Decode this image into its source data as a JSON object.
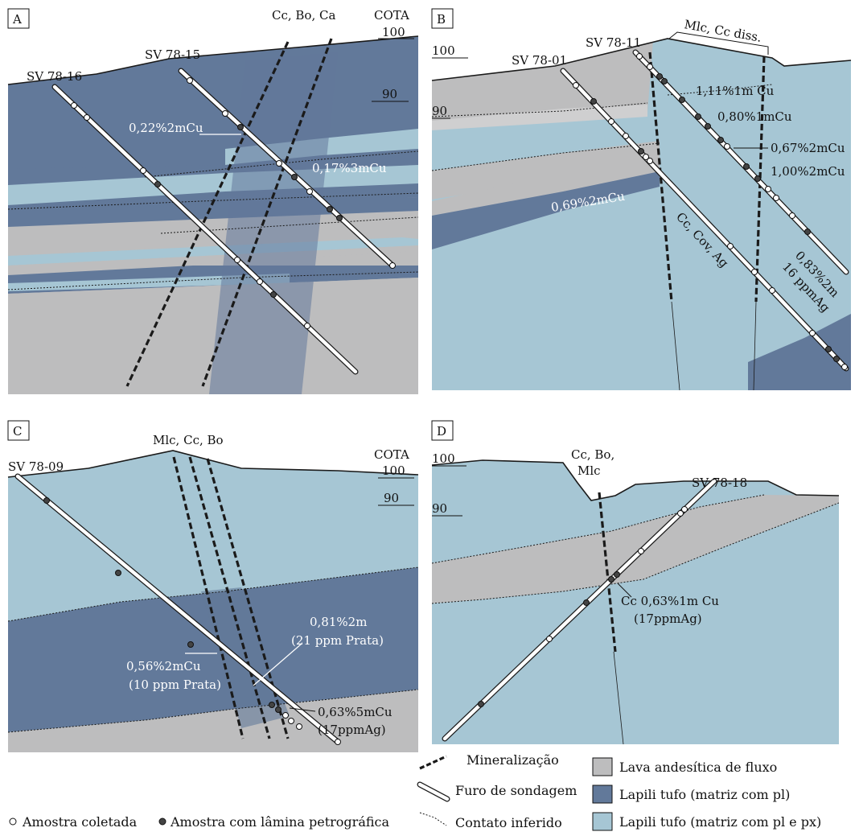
{
  "colors": {
    "gray": "#bdbdbe",
    "dark_blue": "#62799a",
    "light_blue": "#a6c6d4",
    "line": "#1a1a1a"
  },
  "panels": {
    "A": {
      "letter": "A",
      "cota_label": "COTA",
      "level_100": "100",
      "level_90": "90",
      "drill_left": "SV 78-16",
      "drill_right": "SV 78-15",
      "vein_label": "Cc, Bo, Ca",
      "assay1": "0,22%2mCu",
      "assay2": "0,17%3mCu"
    },
    "B": {
      "letter": "B",
      "level_100": "100",
      "level_90": "90",
      "drill_left": "SV 78-01",
      "drill_right": "SV 78-11",
      "vein_label": "Mlc, Cc diss.",
      "assay1": "1,11%1m Cu",
      "assay2": "0,80%1mCu",
      "assay3": "0,67%2mCu",
      "assay4": "1,00%2mCu",
      "assay5": "0,69%2mCu",
      "assay6a": "0,83%2m",
      "assay6b": "16 ppmAg",
      "vein_label2": "Cc, Cov, Ag"
    },
    "C": {
      "letter": "C",
      "cota_label": "COTA",
      "level_100": "100",
      "level_90": "90",
      "drill": "SV 78-09",
      "vein_label": "Mlc, Cc, Bo",
      "assay1a": "0,56%2mCu",
      "assay1b": "(10 ppm Prata)",
      "assay2a": "0,81%2m",
      "assay2b": "(21 ppm Prata)",
      "assay3a": "0,63%5mCu",
      "assay3b": "(17ppmAg)"
    },
    "D": {
      "letter": "D",
      "level_100": "100",
      "level_90": "90",
      "drill": "SV 78-18",
      "vein_label_l1": "Cc, Bo,",
      "vein_label_l2": "Mlc",
      "assay1a": "Cc 0,63%1m Cu",
      "assay1b": "(17ppmAg)"
    }
  },
  "legend": {
    "mineralization": "Mineralização",
    "drillhole": "Furo de sondagem",
    "inferred_contact": "Contato inferido",
    "sample_collected": "Amostra coletada",
    "sample_thin_section": "Amostra com lâmina petrográfica",
    "unit_lava": "Lava andesítica de fluxo",
    "unit_lapili_pl": "Lapili tufo (matriz com pl)",
    "unit_lapili_pl_px": "Lapili tufo (matriz com pl e px)"
  }
}
